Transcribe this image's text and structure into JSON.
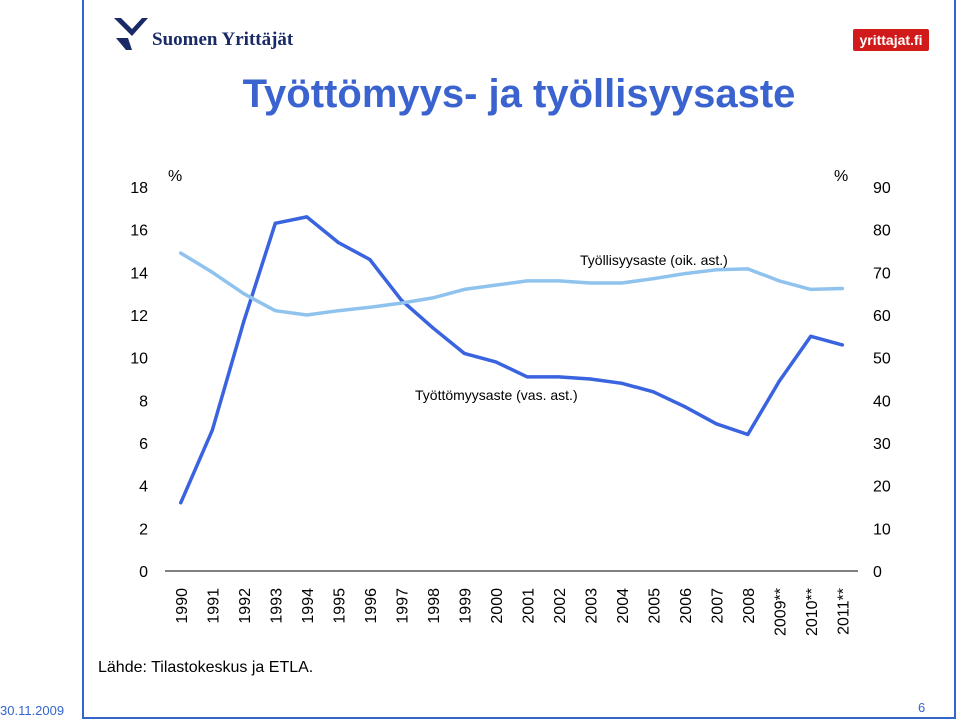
{
  "header": {
    "logo_left_text": "Suomen Yrittäjät",
    "logo_right_text": "yrittajat.fi",
    "title": "Työttömyys- ja työllisyysaste"
  },
  "footer": {
    "source": "Lähde: Tilastokeskus ja ETLA.",
    "date": "30.11.2009",
    "page_number": "6"
  },
  "colors": {
    "unemployment_line": "#3a63df",
    "employment_line": "#8fc3ee",
    "title": "#3a63cf",
    "frame": "#3366cc"
  },
  "chart_data": {
    "type": "line",
    "categories": [
      "1990",
      "1991",
      "1992",
      "1993",
      "1994",
      "1995",
      "1996",
      "1997",
      "1998",
      "1999",
      "2000",
      "2001",
      "2002",
      "2003",
      "2004",
      "2005",
      "2006",
      "2007",
      "2008",
      "2009**",
      "2010**",
      "2011**"
    ],
    "y_left": {
      "unit": "%",
      "min": 0,
      "max": 18,
      "ticks": [
        0,
        2,
        4,
        6,
        8,
        10,
        12,
        14,
        16,
        18
      ]
    },
    "y_right": {
      "unit": "%",
      "min": 0,
      "max": 90,
      "ticks": [
        0,
        10,
        20,
        30,
        40,
        50,
        60,
        70,
        80,
        90
      ]
    },
    "series": [
      {
        "name": "Työttömyysaste (vas. ast.)",
        "axis": "left",
        "values": [
          3.2,
          6.6,
          11.7,
          16.3,
          16.6,
          15.4,
          14.6,
          12.7,
          11.4,
          10.2,
          9.8,
          9.1,
          9.1,
          9.0,
          8.8,
          8.4,
          7.7,
          6.9,
          6.4,
          8.9,
          11.0,
          10.6
        ]
      },
      {
        "name": "Työllisyysaste (oik. ast.)",
        "axis": "right",
        "values": [
          74.5,
          70.0,
          65.0,
          61.0,
          60.0,
          61.0,
          61.8,
          62.8,
          64.0,
          66.0,
          67.0,
          68.0,
          68.0,
          67.5,
          67.5,
          68.5,
          69.7,
          70.6,
          70.8,
          68.0,
          66.0,
          66.2
        ]
      }
    ]
  }
}
